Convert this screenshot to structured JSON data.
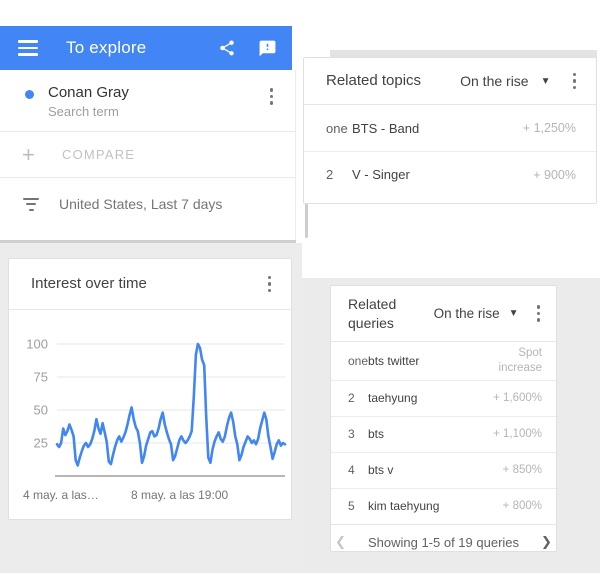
{
  "colors": {
    "accent": "#4285f4",
    "line": "#4285f4",
    "appbar_bg": "#4285f4",
    "muted_text": "#9e9e9e",
    "pct_text": "#b5b5b5",
    "page_gray": "#ececec"
  },
  "appbar": {
    "title": "To explore",
    "icons": [
      "menu-icon",
      "share-icon",
      "feedback-icon"
    ]
  },
  "term_card": {
    "term": "Conan Gray",
    "subtitle": "Search term",
    "compare_label": "COMPARE",
    "filter_label": "United States, Last 7 days"
  },
  "interest_card": {
    "title": "Interest over time"
  },
  "chart_data": {
    "type": "line",
    "title": "Interest over time",
    "series": [
      {
        "name": "Conan Gray",
        "color": "#4285f4",
        "values": [
          24,
          22,
          25,
          36,
          31,
          34,
          39,
          35,
          30,
          12,
          8,
          14,
          19,
          23,
          25,
          22,
          24,
          28,
          34,
          43,
          36,
          32,
          40,
          33,
          26,
          11,
          9,
          16,
          22,
          27,
          30,
          26,
          29,
          33,
          39,
          46,
          52,
          43,
          37,
          34,
          25,
          10,
          15,
          23,
          28,
          33,
          34,
          30,
          31,
          36,
          43,
          48,
          39,
          33,
          28,
          24,
          12,
          15,
          21,
          27,
          30,
          27,
          25,
          27,
          30,
          34,
          60,
          92,
          100,
          97,
          88,
          84,
          45,
          14,
          10,
          20,
          26,
          30,
          33,
          28,
          26,
          30,
          38,
          44,
          48,
          41,
          30,
          24,
          12,
          16,
          22,
          26,
          30,
          28,
          25,
          27,
          24,
          28,
          36,
          42,
          48,
          43,
          30,
          22,
          13,
          18,
          24,
          27,
          23,
          25,
          24
        ]
      }
    ],
    "y_ticks": [
      25,
      50,
      75,
      100
    ],
    "ylim": [
      0,
      100
    ],
    "grid": true,
    "legend_position": "none",
    "x_axis_labels": [
      "4 may. a las…",
      "8 may. a las 19:00"
    ]
  },
  "related_topics": {
    "title": "Related topics",
    "sort": "On the rise",
    "rows": [
      {
        "rank": "one",
        "label": "BTS - Band",
        "change": "+ 1,250%"
      },
      {
        "rank": "2",
        "label": "V - Singer",
        "change": "+ 900%"
      }
    ]
  },
  "related_queries": {
    "title": "Related queries",
    "sort": "On the rise",
    "rows": [
      {
        "rank": "one",
        "label": "bts twitter",
        "change": "Spot increase"
      },
      {
        "rank": "2",
        "label": "taehyung",
        "change": "+ 1,600%"
      },
      {
        "rank": "3",
        "label": "bts",
        "change": "+ 1,100%"
      },
      {
        "rank": "4",
        "label": "bts v",
        "change": "+ 850%"
      },
      {
        "rank": "5",
        "label": "kim taehyung",
        "change": "+ 800%"
      }
    ],
    "footer": "Showing 1-5 of 19 queries"
  }
}
